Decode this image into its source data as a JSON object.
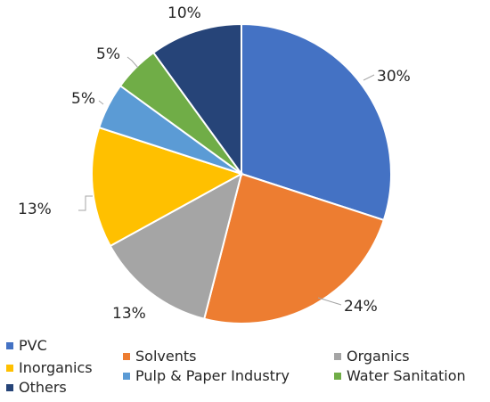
{
  "chart_data": {
    "type": "pie",
    "title": "",
    "categories": [
      "PVC",
      "Solvents",
      "Organics",
      "Inorganics",
      "Pulp & Paper Industry",
      "Water Sanitation",
      "Others"
    ],
    "values": [
      30,
      24,
      13,
      13,
      5,
      5,
      10
    ],
    "labels": [
      "30%",
      "24%",
      "13%",
      "13%",
      "5%",
      "5%",
      "10%"
    ],
    "colors": [
      "#4472c4",
      "#ed7d31",
      "#a5a5a5",
      "#ffc000",
      "#5b9bd5",
      "#70ad47",
      "#264478"
    ],
    "legend_position": "bottom",
    "legend": [
      {
        "label": "PVC",
        "color": "#4472c4"
      },
      {
        "label": "Solvents",
        "color": "#ed7d31"
      },
      {
        "label": "Organics",
        "color": "#a5a5a5"
      },
      {
        "label": "Inorganics",
        "color": "#ffc000"
      },
      {
        "label": "Pulp & Paper Industry",
        "color": "#5b9bd5"
      },
      {
        "label": "Water Sanitation",
        "color": "#70ad47"
      },
      {
        "label": "Others",
        "color": "#264478"
      }
    ]
  }
}
